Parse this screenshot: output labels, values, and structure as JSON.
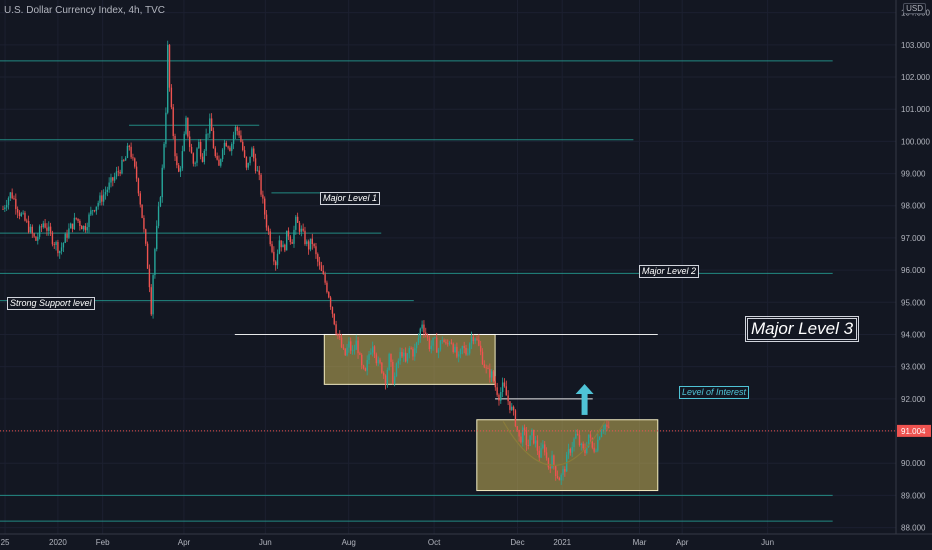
{
  "header": {
    "title": "U.S. Dollar Currency Index, 4h, TVC",
    "currency": "USD"
  },
  "colors": {
    "background": "#131722",
    "up": "#26a69a",
    "down": "#ef5350",
    "level_line": "#26a69a",
    "white_line": "#ffffff",
    "zone_fill": "#c9b45a",
    "price_label": "#ef5350",
    "interest": "#4fc3d6"
  },
  "annotations": {
    "major_level_1": "Major Level 1",
    "major_level_2": "Major Level 2",
    "major_level_3": "Major Level 3",
    "strong_support": "Strong Support level",
    "level_of_interest": "Level of Interest"
  },
  "chart_data": {
    "type": "candlestick",
    "title": "U.S. Dollar Currency Index, 4h, TVC",
    "ylim": [
      87.8,
      104.3
    ],
    "y_ticks": [
      88,
      89,
      90,
      91,
      92,
      93,
      94,
      95,
      96,
      97,
      98,
      99,
      100,
      101,
      102,
      103,
      104
    ],
    "y_tick_labels": [
      "88.000",
      "89.000",
      "90.000",
      "91.000",
      "92.000",
      "93.000",
      "94.000",
      "95.000",
      "96.000",
      "97.000",
      "98.000",
      "99.000",
      "100.000",
      "101.000",
      "102.000",
      "103.000",
      "104.000"
    ],
    "x_ticks": [
      {
        "label": "25",
        "t": 0.5
      },
      {
        "label": "2020",
        "t": 13.5
      },
      {
        "label": "Feb",
        "t": 24.5
      },
      {
        "label": "Apr",
        "t": 44.5
      },
      {
        "label": "Jun",
        "t": 64.5
      },
      {
        "label": "Aug",
        "t": 85
      },
      {
        "label": "Oct",
        "t": 106
      },
      {
        "label": "Dec",
        "t": 126.5
      },
      {
        "label": "2021",
        "t": 137.5
      },
      {
        "label": "Mar",
        "t": 156.5
      },
      {
        "label": "Apr",
        "t": 167
      },
      {
        "label": "Jun",
        "t": 188
      }
    ],
    "last_price": 91.004,
    "last_price_label": "91.004",
    "close_path": [
      [
        0,
        97.9
      ],
      [
        1,
        98.2
      ],
      [
        2,
        98.4
      ],
      [
        4,
        97.8
      ],
      [
        6,
        97.4
      ],
      [
        8,
        96.9
      ],
      [
        10,
        97.5
      ],
      [
        12,
        97.0
      ],
      [
        14,
        96.6
      ],
      [
        16,
        97.2
      ],
      [
        18,
        97.6
      ],
      [
        20,
        97.3
      ],
      [
        22,
        97.9
      ],
      [
        24,
        98.2
      ],
      [
        26,
        98.6
      ],
      [
        28,
        99.0
      ],
      [
        30,
        99.4
      ],
      [
        31,
        99.9
      ],
      [
        32,
        99.3
      ],
      [
        33,
        98.8
      ],
      [
        34,
        97.9
      ],
      [
        35,
        96.8
      ],
      [
        36,
        95.6
      ],
      [
        36.5,
        94.7
      ],
      [
        37,
        96.2
      ],
      [
        38,
        97.5
      ],
      [
        39,
        98.8
      ],
      [
        40,
        100.8
      ],
      [
        40.5,
        102.9
      ],
      [
        41,
        101.5
      ],
      [
        42,
        100.0
      ],
      [
        43,
        98.9
      ],
      [
        44,
        99.5
      ],
      [
        45,
        100.6
      ],
      [
        46,
        99.8
      ],
      [
        47,
        99.2
      ],
      [
        48,
        100.0
      ],
      [
        49,
        99.5
      ],
      [
        50,
        100.2
      ],
      [
        51,
        100.6
      ],
      [
        52,
        99.6
      ],
      [
        53,
        99.1
      ],
      [
        54,
        99.9
      ],
      [
        55,
        100.0
      ],
      [
        56,
        99.8
      ],
      [
        57,
        100.4
      ],
      [
        58,
        100.3
      ],
      [
        59,
        99.7
      ],
      [
        60,
        99.0
      ],
      [
        61,
        99.8
      ],
      [
        62,
        99.3
      ],
      [
        63,
        98.8
      ],
      [
        64,
        98.0
      ],
      [
        65,
        97.3
      ],
      [
        66,
        96.8
      ],
      [
        67,
        96.2
      ],
      [
        68,
        97.0
      ],
      [
        69,
        96.6
      ],
      [
        70,
        97.2
      ],
      [
        71,
        96.9
      ],
      [
        72,
        97.5
      ],
      [
        73,
        97.3
      ],
      [
        74,
        97.0
      ],
      [
        75,
        96.7
      ],
      [
        76,
        96.9
      ],
      [
        77,
        96.4
      ],
      [
        78,
        96.0
      ],
      [
        79,
        95.7
      ],
      [
        80,
        95.3
      ],
      [
        81,
        94.7
      ],
      [
        82,
        94.1
      ],
      [
        83,
        93.7
      ],
      [
        84,
        93.3
      ],
      [
        85,
        93.7
      ],
      [
        86,
        93.4
      ],
      [
        87,
        93.8
      ],
      [
        88,
        93.0
      ],
      [
        89,
        92.7
      ],
      [
        90,
        93.4
      ],
      [
        91,
        93.8
      ],
      [
        92,
        93.1
      ],
      [
        93,
        93.0
      ],
      [
        94,
        92.6
      ],
      [
        95,
        93.3
      ],
      [
        96,
        92.5
      ],
      [
        97,
        93.1
      ],
      [
        98,
        93.5
      ],
      [
        99,
        93.1
      ],
      [
        100,
        93.6
      ],
      [
        101,
        93.4
      ],
      [
        102,
        93.8
      ],
      [
        103,
        94.4
      ],
      [
        104,
        94.0
      ],
      [
        105,
        93.6
      ],
      [
        106,
        93.8
      ],
      [
        107,
        93.5
      ],
      [
        108,
        93.9
      ],
      [
        109,
        93.6
      ],
      [
        110,
        93.9
      ],
      [
        111,
        93.5
      ],
      [
        112,
        93.2
      ],
      [
        113,
        93.6
      ],
      [
        114,
        93.4
      ],
      [
        115,
        93.9
      ],
      [
        116,
        94.0
      ],
      [
        117,
        93.6
      ],
      [
        118,
        93.2
      ],
      [
        119,
        92.8
      ],
      [
        120,
        92.8
      ],
      [
        121,
        92.4
      ],
      [
        122,
        92.1
      ],
      [
        123,
        92.4
      ],
      [
        124,
        92.0
      ],
      [
        125,
        91.7
      ],
      [
        126,
        91.3
      ],
      [
        127,
        90.7
      ],
      [
        128,
        91.0
      ],
      [
        129,
        90.5
      ],
      [
        130,
        90.9
      ],
      [
        131,
        90.6
      ],
      [
        132,
        90.2
      ],
      [
        133,
        90.6
      ],
      [
        134,
        89.9
      ],
      [
        135,
        90.1
      ],
      [
        136,
        89.7
      ],
      [
        137,
        89.5
      ],
      [
        138,
        89.8
      ],
      [
        139,
        90.3
      ],
      [
        140,
        90.6
      ],
      [
        141,
        90.9
      ],
      [
        142,
        90.5
      ],
      [
        143,
        90.3
      ],
      [
        144,
        90.9
      ],
      [
        145,
        90.4
      ],
      [
        146,
        90.6
      ],
      [
        147,
        91.1
      ],
      [
        148,
        91.2
      ],
      [
        149,
        91.0
      ]
    ],
    "horizontal_levels": [
      {
        "price": 102.5,
        "t_start": -1,
        "t_end": 204,
        "color": "teal"
      },
      {
        "price": 100.05,
        "t_start": -1,
        "t_end": 155,
        "color": "teal"
      },
      {
        "price": 100.5,
        "t_start": 31,
        "t_end": 63,
        "color": "teal"
      },
      {
        "price": 98.4,
        "t_start": 66,
        "t_end": 91,
        "color": "teal"
      },
      {
        "price": 97.15,
        "t_start": -1,
        "t_end": 93,
        "color": "teal"
      },
      {
        "price": 95.9,
        "t_start": -1,
        "t_end": 204,
        "color": "teal"
      },
      {
        "price": 95.05,
        "t_start": -1,
        "t_end": 101,
        "color": "teal"
      },
      {
        "price": 94.0,
        "t_start": 57,
        "t_end": 161,
        "color": "white"
      },
      {
        "price": 92.0,
        "t_start": 121,
        "t_end": 145,
        "color": "white"
      },
      {
        "price": 89.0,
        "t_start": -1,
        "t_end": 204,
        "color": "teal"
      },
      {
        "price": 88.2,
        "t_start": -1,
        "t_end": 204,
        "color": "teal"
      }
    ],
    "zones": [
      {
        "t_start": 79,
        "t_end": 121,
        "price_top": 94.0,
        "price_bottom": 92.45
      },
      {
        "t_start": 116.5,
        "t_end": 161,
        "price_top": 91.35,
        "price_bottom": 89.15
      }
    ],
    "arrow": {
      "t": 143,
      "price_from": 91.5,
      "price_to": 92.4
    },
    "grid": true,
    "legend": "none"
  }
}
